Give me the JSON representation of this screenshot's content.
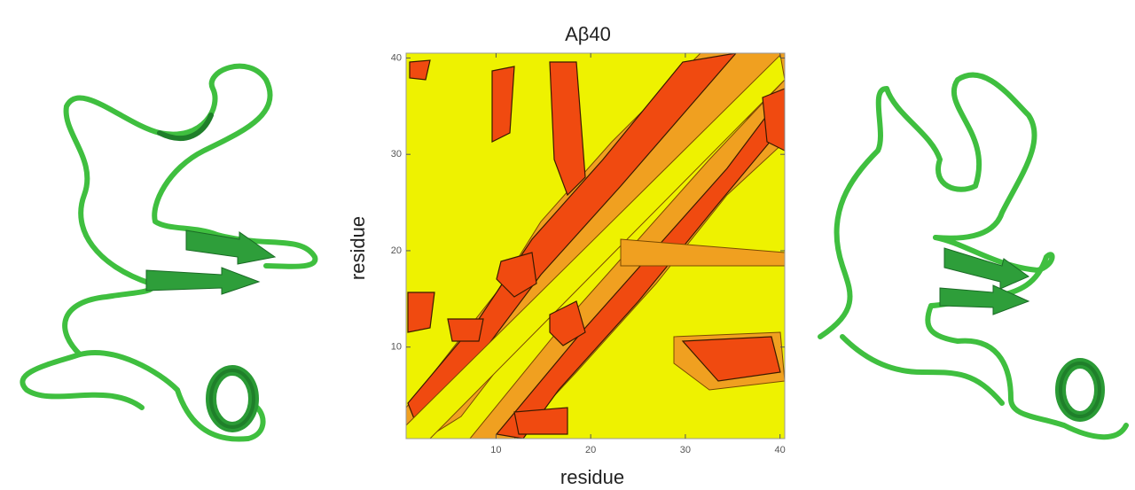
{
  "chart_data": {
    "type": "contour",
    "title": "Aβ40",
    "xlabel": "residue",
    "ylabel": "residue",
    "xlim": [
      0.5,
      40.5
    ],
    "ylim": [
      0.5,
      40.5
    ],
    "xticks": [
      10,
      20,
      30,
      40
    ],
    "yticks": [
      10,
      20,
      30,
      40
    ],
    "background_color": "#eef200",
    "color": "#f04a10"
  }
}
